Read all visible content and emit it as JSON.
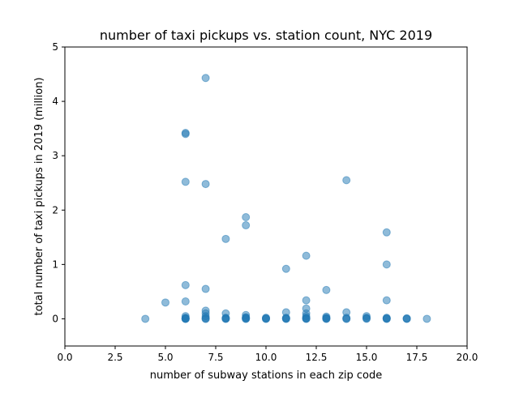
{
  "chart_data": {
    "type": "scatter",
    "title": "number of taxi pickups vs. station count, NYC 2019",
    "xlabel": "number of subway stations in each zip code",
    "ylabel": "total number of taxi pickups in 2019 (million)",
    "xlim": [
      0,
      20
    ],
    "ylim": [
      -0.5,
      5
    ],
    "xticks": [
      0,
      2.5,
      5,
      7.5,
      10,
      12.5,
      15,
      17.5,
      20
    ],
    "xtick_labels": [
      "0.0",
      "2.5",
      "5.0",
      "7.5",
      "10.0",
      "12.5",
      "15.0",
      "17.5",
      "20.0"
    ],
    "yticks": [
      0,
      1,
      2,
      3,
      4,
      5
    ],
    "ytick_labels": [
      "0",
      "1",
      "2",
      "3",
      "4",
      "5"
    ],
    "grid": false,
    "legend": "none",
    "marker_color": "#1f77b4",
    "marker_alpha": 0.5,
    "series": [
      {
        "points": [
          [
            4,
            0.0
          ],
          [
            5,
            0.3
          ],
          [
            6,
            3.42
          ],
          [
            6,
            3.4
          ],
          [
            6,
            2.52
          ],
          [
            6,
            0.62
          ],
          [
            6,
            0.32
          ],
          [
            6,
            0.05
          ],
          [
            6,
            0.02
          ],
          [
            6,
            0.01
          ],
          [
            6,
            0.0
          ],
          [
            6,
            0.0
          ],
          [
            6,
            0.0
          ],
          [
            7,
            4.43
          ],
          [
            7,
            2.48
          ],
          [
            7,
            0.55
          ],
          [
            7,
            0.15
          ],
          [
            7,
            0.1
          ],
          [
            7,
            0.05
          ],
          [
            7,
            0.02
          ],
          [
            7,
            0.0
          ],
          [
            7,
            0.0
          ],
          [
            8,
            1.47
          ],
          [
            8,
            0.1
          ],
          [
            8,
            0.02
          ],
          [
            8,
            0.01
          ],
          [
            8,
            0.0
          ],
          [
            8,
            0.0
          ],
          [
            9,
            1.87
          ],
          [
            9,
            1.72
          ],
          [
            9,
            0.07
          ],
          [
            9,
            0.03
          ],
          [
            9,
            0.02
          ],
          [
            9,
            0.01
          ],
          [
            9,
            0.0
          ],
          [
            9,
            0.0
          ],
          [
            10,
            0.02
          ],
          [
            10,
            0.01
          ],
          [
            10,
            0.0
          ],
          [
            10,
            0.0
          ],
          [
            11,
            0.92
          ],
          [
            11,
            0.12
          ],
          [
            11,
            0.02
          ],
          [
            11,
            0.01
          ],
          [
            11,
            0.0
          ],
          [
            11,
            0.0
          ],
          [
            12,
            1.16
          ],
          [
            12,
            0.34
          ],
          [
            12,
            0.19
          ],
          [
            12,
            0.1
          ],
          [
            12,
            0.05
          ],
          [
            12,
            0.02
          ],
          [
            12,
            0.01
          ],
          [
            12,
            0.0
          ],
          [
            12,
            0.0
          ],
          [
            13,
            0.53
          ],
          [
            13,
            0.04
          ],
          [
            13,
            0.02
          ],
          [
            13,
            0.01
          ],
          [
            13,
            0.0
          ],
          [
            13,
            0.0
          ],
          [
            14,
            2.55
          ],
          [
            14,
            0.12
          ],
          [
            14,
            0.02
          ],
          [
            14,
            0.0
          ],
          [
            14,
            0.0
          ],
          [
            15,
            0.05
          ],
          [
            15,
            0.02
          ],
          [
            15,
            0.01
          ],
          [
            15,
            0.0
          ],
          [
            16,
            1.59
          ],
          [
            16,
            1.0
          ],
          [
            16,
            0.34
          ],
          [
            16,
            0.02
          ],
          [
            16,
            0.01
          ],
          [
            16,
            0.0
          ],
          [
            16,
            0.0
          ],
          [
            17,
            0.01
          ],
          [
            17,
            0.0
          ],
          [
            17,
            0.0
          ],
          [
            18,
            0.0
          ]
        ]
      }
    ]
  }
}
